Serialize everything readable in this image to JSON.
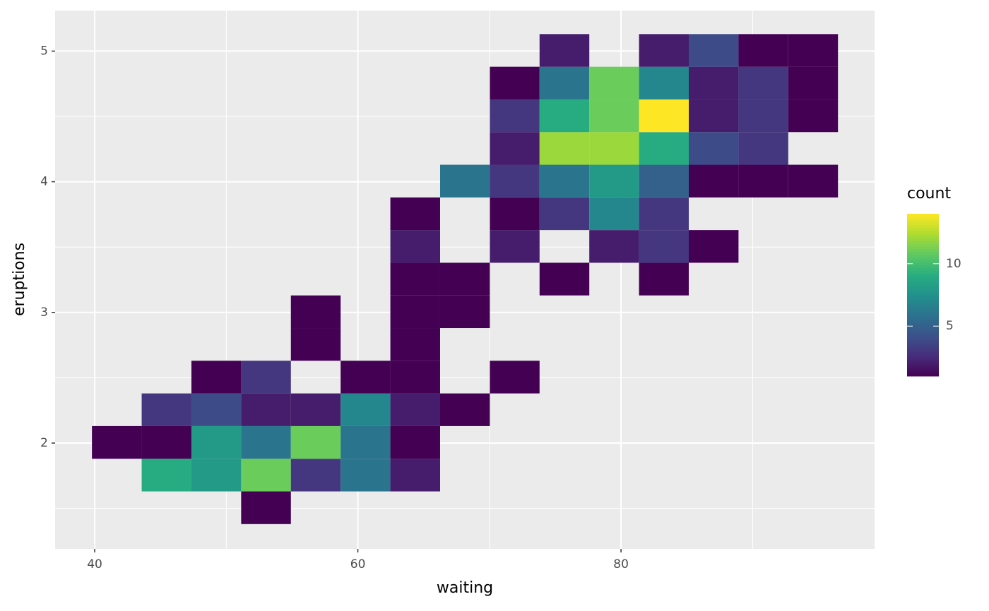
{
  "chart_data": {
    "type": "bin2d",
    "x_label": "waiting",
    "y_label": "eruptions",
    "legend_title": "count",
    "xlim": [
      36.99,
      99.27
    ],
    "ylim": [
      1.19,
      5.31
    ],
    "xticks": [
      40,
      60,
      80
    ],
    "yticks": [
      2,
      3,
      4,
      5
    ],
    "grid": true,
    "x_bins": [
      39.79,
      43.57,
      47.35,
      51.13,
      54.91,
      58.69,
      62.47,
      66.25,
      70.03,
      73.81,
      77.59,
      81.37,
      85.15,
      88.93,
      92.71,
      96.49
    ],
    "y_bins": [
      1.38,
      1.63,
      1.88,
      2.13,
      2.38,
      2.63,
      2.88,
      3.13,
      3.38,
      3.63,
      3.88,
      4.13,
      4.38,
      4.63,
      4.88,
      5.13
    ],
    "counts": [
      [
        null,
        null,
        null,
        1,
        null,
        null,
        null,
        null,
        null,
        null,
        null,
        null,
        null,
        null,
        null
      ],
      [
        null,
        9,
        8,
        11,
        3,
        6,
        2,
        null,
        null,
        null,
        null,
        null,
        null,
        null,
        null
      ],
      [
        1,
        1,
        8,
        6,
        11,
        6,
        1,
        null,
        null,
        null,
        null,
        null,
        null,
        null,
        null
      ],
      [
        null,
        3,
        4,
        2,
        2,
        7,
        2,
        1,
        null,
        null,
        null,
        null,
        null,
        null,
        null
      ],
      [
        null,
        null,
        1,
        3,
        null,
        1,
        1,
        null,
        1,
        null,
        null,
        null,
        null,
        null,
        null
      ],
      [
        null,
        null,
        null,
        null,
        1,
        null,
        1,
        null,
        null,
        null,
        null,
        null,
        null,
        null,
        null
      ],
      [
        null,
        null,
        null,
        null,
        1,
        null,
        1,
        1,
        null,
        null,
        null,
        null,
        null,
        null,
        null
      ],
      [
        null,
        null,
        null,
        null,
        null,
        null,
        1,
        1,
        null,
        1,
        null,
        1,
        null,
        null,
        null
      ],
      [
        null,
        null,
        null,
        null,
        null,
        null,
        2,
        null,
        2,
        null,
        2,
        3,
        1,
        null,
        null
      ],
      [
        null,
        null,
        null,
        null,
        null,
        null,
        1,
        null,
        1,
        3,
        7,
        3,
        null,
        null,
        null
      ],
      [
        null,
        null,
        null,
        null,
        null,
        null,
        null,
        6,
        3,
        6,
        8,
        5,
        1,
        1,
        1
      ],
      [
        null,
        null,
        null,
        null,
        null,
        null,
        null,
        null,
        2,
        12,
        12,
        9,
        4,
        3,
        null
      ],
      [
        null,
        null,
        null,
        null,
        null,
        null,
        null,
        null,
        3,
        9,
        11,
        14,
        2,
        3,
        1
      ],
      [
        null,
        null,
        null,
        null,
        null,
        null,
        null,
        null,
        1,
        6,
        11,
        7,
        2,
        3,
        1
      ],
      [
        null,
        null,
        null,
        null,
        null,
        null,
        null,
        null,
        null,
        2,
        null,
        2,
        4,
        1,
        1
      ]
    ],
    "fill_lim": [
      1,
      14
    ],
    "fill_ticks": [
      5,
      10
    ],
    "colors": [
      "#440154",
      "#472d7b",
      "#3b528b",
      "#2c728e",
      "#21918c",
      "#28ae80",
      "#5ec962",
      "#addc30",
      "#fde725"
    ]
  }
}
